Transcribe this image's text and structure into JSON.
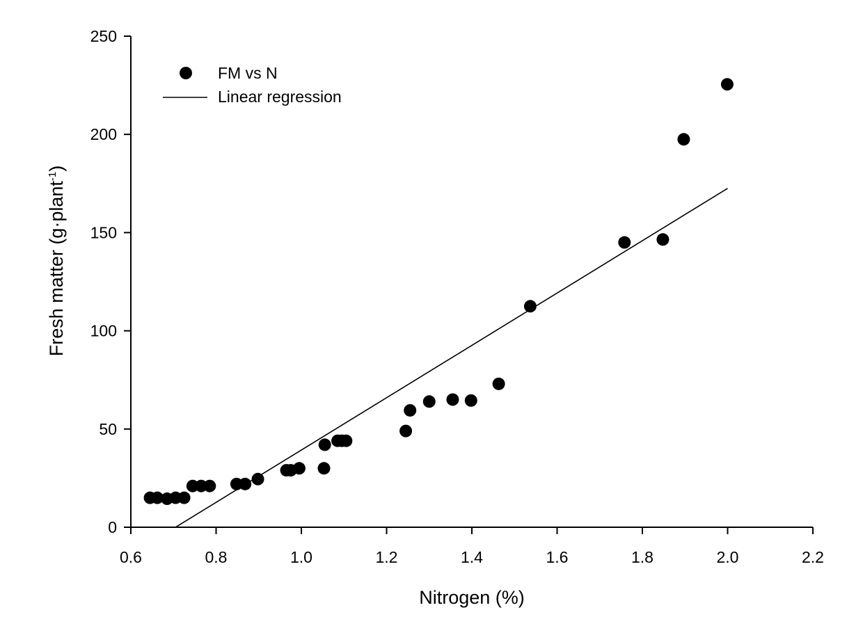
{
  "chart_data": {
    "type": "scatter",
    "xlabel": "Nitrogen (%)",
    "ylabel": "Fresh matter (g·plant",
    "ylabel_superscript": "-1",
    "ylabel_suffix": ")",
    "xlim": [
      0.6,
      2.2
    ],
    "ylim": [
      0,
      250
    ],
    "x_ticks": [
      "0.6",
      "0.8",
      "1.0",
      "1.2",
      "1.4",
      "1.6",
      "1.8",
      "2.0",
      "2.2"
    ],
    "y_ticks": [
      "0",
      "50",
      "100",
      "150",
      "200",
      "250"
    ],
    "legend_position": "top-left",
    "legend": {
      "points_label": "FM  vs N",
      "line_label": "Linear regression"
    },
    "series": [
      {
        "name": "FM  vs N",
        "kind": "points",
        "x": [
          0.645,
          0.662,
          0.685,
          0.705,
          0.725,
          0.745,
          0.765,
          0.785,
          0.848,
          0.868,
          0.898,
          0.965,
          0.975,
          0.995,
          1.053,
          1.055,
          1.085,
          1.095,
          1.105,
          1.245,
          1.255,
          1.3,
          1.355,
          1.398,
          1.463,
          1.537,
          1.758,
          1.848,
          1.897,
          1.999
        ],
        "y": [
          15,
          15,
          14.5,
          15,
          15,
          21,
          21,
          21,
          22,
          22,
          24.5,
          29,
          29,
          30,
          30,
          42,
          44,
          44,
          44,
          49,
          59.5,
          64,
          65,
          64.5,
          73,
          112.5,
          145,
          146.5,
          197.5,
          225.5
        ]
      },
      {
        "name": "Linear regression",
        "kind": "line",
        "x": [
          0.705,
          2.0
        ],
        "y": [
          0,
          172.5
        ]
      }
    ]
  }
}
